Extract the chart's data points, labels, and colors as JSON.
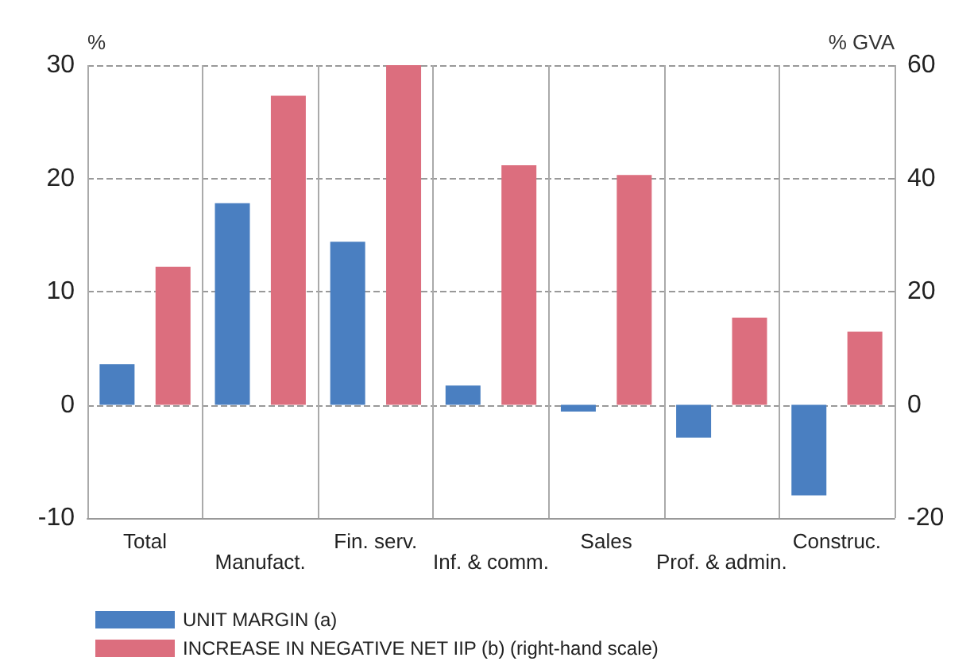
{
  "chart_data": {
    "type": "bar",
    "ylabel": "%",
    "y2label": "% GVA",
    "categories": [
      "Total",
      "Manufact.",
      "Fin. serv.",
      "Inf. & comm.",
      "Sales",
      "Prof. & admin.",
      "Construc."
    ],
    "series": [
      {
        "name": "UNIT MARGIN (a)",
        "color": "#4a7fc1",
        "values": [
          3.6,
          17.8,
          14.4,
          1.7,
          -0.6,
          -2.9,
          -8.0
        ]
      },
      {
        "name": "INCREASE IN NEGATIVE NET IIP (b) (right-hand scale)",
        "color": "#dc6e7e",
        "axis": "y2",
        "values": [
          24.4,
          54.6,
          60,
          42.3,
          40.6,
          15.4,
          12.9
        ]
      }
    ],
    "ylim": [
      -10,
      30
    ],
    "yticks": [
      -10,
      0,
      10,
      20,
      30
    ],
    "y2lim": [
      -20,
      60
    ],
    "y2ticks": [
      -20,
      0,
      20,
      40,
      60
    ],
    "grid": "y",
    "legend": "bottom left"
  }
}
